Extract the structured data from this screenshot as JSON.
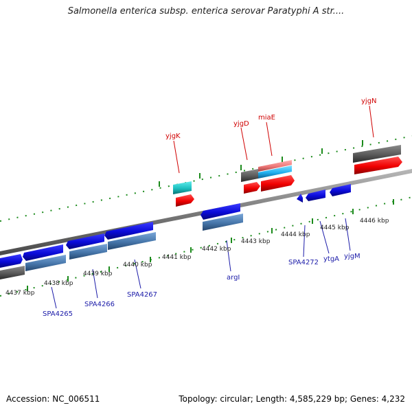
{
  "title": "Salmonella enterica subsp. enterica serovar Paratyphi A str....",
  "footer": {
    "accession": "Accession: NC_006511",
    "summary": "Topology: circular; Length: 4,585,229 bp; Genes: 4,232"
  },
  "colors": {
    "forward_tick": "#1a8a1a",
    "backbone": "#808080",
    "red_gene": "#ff1010",
    "blue_gene": "#1010ee",
    "steelblue_gene": "#4a7ab0",
    "gray_gene": "#606060",
    "cyan_gene": "#20c8c8",
    "pink_gene": "#f08080",
    "label_red": "#d00000",
    "label_blue": "#1a1aa8"
  },
  "kbp_labels": [
    "4437 kbp",
    "4438 kbp",
    "4439 kbp",
    "4440 kbp",
    "4441 kbp",
    "4442 kbp",
    "4443 kbp",
    "4444 kbp",
    "4445 kbp",
    "4446 kbp"
  ],
  "gene_labels": {
    "top": [
      "yjgK",
      "yjgD",
      "miaE",
      "yjgN"
    ],
    "bottom": [
      "SPA4265",
      "SPA4266",
      "SPA4267",
      "argI",
      "SPA4272",
      "ytgA",
      "yjgM"
    ]
  }
}
